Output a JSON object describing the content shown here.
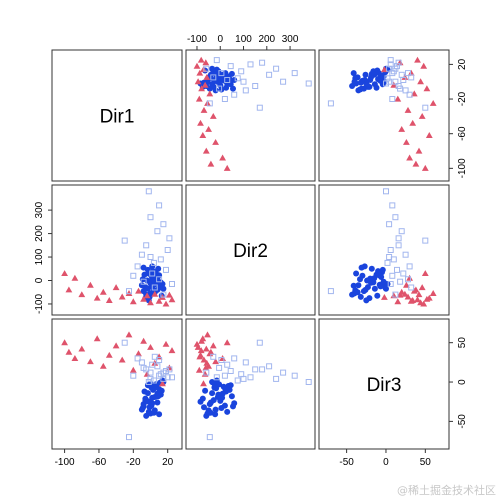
{
  "chart_data": {
    "type": "scatter",
    "title": "",
    "variables": [
      "Dir1",
      "Dir2",
      "Dir3"
    ],
    "axes": {
      "Dir1": {
        "range": [
          -110,
          32
        ],
        "ticks": [
          -100,
          -60,
          -20,
          20
        ],
        "tick_labels": [
          "-100",
          "-60",
          "-20",
          "20"
        ]
      },
      "Dir2": {
        "range": [
          -130,
          390
        ],
        "ticks": [
          -100,
          0,
          100,
          200,
          300
        ],
        "tick_labels": [
          "-100",
          "0",
          "100",
          "200",
          "300"
        ]
      },
      "Dir3": {
        "range": [
          -80,
          75
        ],
        "ticks": [
          -50,
          0,
          50
        ],
        "tick_labels": [
          "-50",
          "0",
          "50"
        ]
      }
    },
    "axis_ticks_layout": "alternating",
    "grid": false,
    "legend": "none",
    "series": [
      {
        "group": 1,
        "marker": "filled-circle",
        "color": "#1a44dd",
        "points": [
          {
            "Dir1": 0,
            "Dir2": -12,
            "Dir3": -2
          },
          {
            "Dir1": 4,
            "Dir2": -18,
            "Dir3": -8
          },
          {
            "Dir1": -3,
            "Dir2": -35,
            "Dir3": -14
          },
          {
            "Dir1": 6,
            "Dir2": -5,
            "Dir3": -3
          },
          {
            "Dir1": 2,
            "Dir2": 8,
            "Dir3": -20
          },
          {
            "Dir1": -6,
            "Dir2": -28,
            "Dir3": -23
          },
          {
            "Dir1": 8,
            "Dir2": -40,
            "Dir3": -26
          },
          {
            "Dir1": 1,
            "Dir2": 20,
            "Dir3": -30
          },
          {
            "Dir1": -9,
            "Dir2": 5,
            "Dir3": -33
          },
          {
            "Dir1": 5,
            "Dir2": -50,
            "Dir3": -36
          },
          {
            "Dir1": -2,
            "Dir2": 30,
            "Dir3": -38
          },
          {
            "Dir1": 10,
            "Dir2": -22,
            "Dir3": -41
          },
          {
            "Dir1": -5,
            "Dir2": -60,
            "Dir3": -43
          },
          {
            "Dir1": 3,
            "Dir2": 40,
            "Dir3": -10
          },
          {
            "Dir1": 12,
            "Dir2": -8,
            "Dir3": -16
          },
          {
            "Dir1": -8,
            "Dir2": -45,
            "Dir3": -28
          },
          {
            "Dir1": 7,
            "Dir2": 15,
            "Dir3": -6
          },
          {
            "Dir1": -1,
            "Dir2": -70,
            "Dir3": -32
          },
          {
            "Dir1": 9,
            "Dir2": 50,
            "Dir3": -18
          },
          {
            "Dir1": -4,
            "Dir2": 0,
            "Dir3": -24
          },
          {
            "Dir1": 11,
            "Dir2": -30,
            "Dir3": -1
          },
          {
            "Dir1": -7,
            "Dir2": 25,
            "Dir3": -12
          },
          {
            "Dir1": 14,
            "Dir2": -15,
            "Dir3": 2
          },
          {
            "Dir1": 0,
            "Dir2": -55,
            "Dir3": -40
          },
          {
            "Dir1": 6,
            "Dir2": 35,
            "Dir3": -5
          },
          {
            "Dir1": -10,
            "Dir2": -20,
            "Dir3": -35
          },
          {
            "Dir1": 13,
            "Dir2": -65,
            "Dir3": -11
          },
          {
            "Dir1": 2,
            "Dir2": 60,
            "Dir3": -27
          },
          {
            "Dir1": -6,
            "Dir2": -75,
            "Dir3": -21
          },
          {
            "Dir1": 8,
            "Dir2": 10,
            "Dir3": -15
          },
          {
            "Dir1": 4,
            "Dir2": -42,
            "Dir3": -39
          },
          {
            "Dir1": -3,
            "Dir2": 45,
            "Dir3": -4
          },
          {
            "Dir1": 15,
            "Dir2": -35,
            "Dir3": 0
          },
          {
            "Dir1": -2,
            "Dir2": -85,
            "Dir3": -25
          },
          {
            "Dir1": 10,
            "Dir2": 22,
            "Dir3": -9
          },
          {
            "Dir1": -8,
            "Dir2": 55,
            "Dir3": -31
          },
          {
            "Dir1": 5,
            "Dir2": -10,
            "Dir3": -19
          },
          {
            "Dir1": 1,
            "Dir2": -25,
            "Dir3": -7
          }
        ]
      },
      {
        "group": 2,
        "marker": "filled-triangle",
        "color": "#df536b",
        "points": [
          {
            "Dir1": -100,
            "Dir2": 30,
            "Dir3": 50
          },
          {
            "Dir1": -95,
            "Dir2": -40,
            "Dir3": 38
          },
          {
            "Dir1": -88,
            "Dir2": 10,
            "Dir3": 30
          },
          {
            "Dir1": -80,
            "Dir2": -60,
            "Dir3": 42
          },
          {
            "Dir1": -70,
            "Dir2": -20,
            "Dir3": 26
          },
          {
            "Dir1": -62,
            "Dir2": -75,
            "Dir3": 55
          },
          {
            "Dir1": -55,
            "Dir2": -50,
            "Dir3": 20
          },
          {
            "Dir1": -48,
            "Dir2": -85,
            "Dir3": 34
          },
          {
            "Dir1": -40,
            "Dir2": -30,
            "Dir3": 46
          },
          {
            "Dir1": -33,
            "Dir2": -70,
            "Dir3": 28
          },
          {
            "Dir1": -25,
            "Dir2": -55,
            "Dir3": 60
          },
          {
            "Dir1": -20,
            "Dir2": -90,
            "Dir3": 15
          },
          {
            "Dir1": -14,
            "Dir2": -45,
            "Dir3": 36
          },
          {
            "Dir1": -8,
            "Dir2": -80,
            "Dir3": 52
          },
          {
            "Dir1": -4,
            "Dir2": -65,
            "Dir3": 10
          },
          {
            "Dir1": 0,
            "Dir2": -95,
            "Dir3": 44
          },
          {
            "Dir1": 5,
            "Dir2": -58,
            "Dir3": 24
          },
          {
            "Dir1": 10,
            "Dir2": -88,
            "Dir3": 32
          },
          {
            "Dir1": 14,
            "Dir2": -72,
            "Dir3": -2
          },
          {
            "Dir1": 18,
            "Dir2": -100,
            "Dir3": 48
          },
          {
            "Dir1": 22,
            "Dir2": -62,
            "Dir3": 18
          },
          {
            "Dir1": 25,
            "Dir2": -82,
            "Dir3": 40
          }
        ]
      },
      {
        "group": 3,
        "marker": "open-square",
        "color": "#a2b6ee",
        "points": [
          {
            "Dir1": -2,
            "Dir2": 380,
            "Dir3": 0
          },
          {
            "Dir1": 10,
            "Dir2": 320,
            "Dir3": 8
          },
          {
            "Dir1": 0,
            "Dir2": 270,
            "Dir3": 12
          },
          {
            "Dir1": 15,
            "Dir2": 240,
            "Dir3": 4
          },
          {
            "Dir1": -30,
            "Dir2": 170,
            "Dir3": 50
          },
          {
            "Dir1": 8,
            "Dir2": 210,
            "Dir3": 20
          },
          {
            "Dir1": -5,
            "Dir2": 150,
            "Dir3": 16
          },
          {
            "Dir1": 20,
            "Dir2": 130,
            "Dir3": 6
          },
          {
            "Dir1": -10,
            "Dir2": 110,
            "Dir3": 25
          },
          {
            "Dir1": 12,
            "Dir2": 90,
            "Dir3": 10
          },
          {
            "Dir1": 4,
            "Dir2": 75,
            "Dir3": 2
          },
          {
            "Dir1": -15,
            "Dir2": 60,
            "Dir3": 30
          },
          {
            "Dir1": 18,
            "Dir2": 45,
            "Dir3": 14
          },
          {
            "Dir1": 2,
            "Dir2": 30,
            "Dir3": 22
          },
          {
            "Dir1": -20,
            "Dir2": 20,
            "Dir3": 8
          },
          {
            "Dir1": 10,
            "Dir2": 5,
            "Dir3": 28
          },
          {
            "Dir1": -8,
            "Dir2": -5,
            "Dir3": 18
          },
          {
            "Dir1": 25,
            "Dir2": -15,
            "Dir3": 6
          },
          {
            "Dir1": 5,
            "Dir2": -30,
            "Dir3": 32
          },
          {
            "Dir1": -25,
            "Dir2": -45,
            "Dir3": -70
          },
          {
            "Dir1": 15,
            "Dir2": -60,
            "Dir3": 12
          },
          {
            "Dir1": 0,
            "Dir2": 100,
            "Dir3": 4
          },
          {
            "Dir1": 22,
            "Dir2": 180,
            "Dir3": 16
          }
        ]
      }
    ]
  }
}
